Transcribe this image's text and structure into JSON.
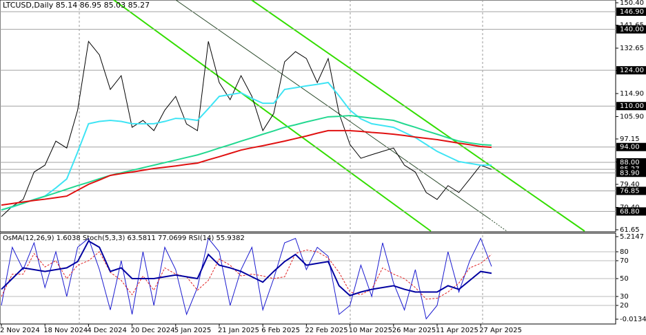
{
  "chart_data": [
    {
      "type": "line",
      "title": "LTCUSD,Daily  85.14 86.95 85.03 85.27",
      "categories": [
        "2 Nov 2024",
        null,
        null,
        null,
        "18 Nov 2024",
        null,
        null,
        null,
        "4 Dec 2024",
        null,
        null,
        null,
        "20 Dec 2024",
        null,
        null,
        null,
        "5 Jan 2025",
        null,
        null,
        null,
        "21 Jan 2025",
        null,
        null,
        null,
        "6 Feb 2025",
        null,
        null,
        null,
        "22 Feb 2025",
        null,
        null,
        null,
        "10 Mar 2025",
        null,
        null,
        null,
        "26 Mar 2025",
        null,
        null,
        null,
        "11 Apr 2025",
        null,
        null,
        null,
        "27 Apr 2025",
        null,
        null,
        null,
        null,
        null,
        null,
        null,
        null,
        null,
        null,
        null,
        null
      ],
      "ylim": [
        60.84,
        151.48
      ],
      "yticks": [
        {
          "value": 150.4,
          "label": "150.40"
        },
        {
          "value": 141.65,
          "label": "141.65"
        },
        {
          "value": 132.65,
          "label": "132.65"
        },
        {
          "value": 123.9,
          "label": "123.90"
        },
        {
          "value": 114.9,
          "label": "114.90"
        },
        {
          "value": 105.9,
          "label": "105.90"
        },
        {
          "value": 97.15,
          "label": "97.15"
        },
        {
          "value": 88.15,
          "label": "88.15"
        },
        {
          "value": 79.4,
          "label": "79.40"
        },
        {
          "value": 70.4,
          "label": "70.40"
        },
        {
          "value": 61.65,
          "label": "61.65"
        }
      ],
      "levels": [
        {
          "value": 146.9,
          "label": "146.90"
        },
        {
          "value": 140,
          "label": "140.00"
        },
        {
          "value": 124,
          "label": "124.00"
        },
        {
          "value": 110,
          "label": "110.00"
        },
        {
          "value": 94,
          "label": "94.00"
        },
        {
          "value": 88,
          "label": "88.00"
        },
        {
          "value": 85.27,
          "label": "85.27"
        },
        {
          "value": 83.9,
          "label": "83.90"
        },
        {
          "value": 76.85,
          "label": "76.85"
        },
        {
          "value": 68.8,
          "label": "68.80"
        }
      ],
      "series": [
        {
          "name": "Close",
          "color": "#000000",
          "values": [
            66.8,
            70.8,
            73.5,
            84.2,
            86.9,
            96.3,
            93.6,
            108.4,
            135.3,
            130,
            116.5,
            121.9,
            101.7,
            104.4,
            100.4,
            108.4,
            113.8,
            103,
            100.4,
            135.3,
            119.2,
            112.5,
            121.9,
            113.8,
            100.4,
            107.1,
            127.3,
            131.3,
            128.6,
            119.2,
            128.6,
            107.1,
            95,
            89.6,
            91,
            92.3,
            93.6,
            86.9,
            84.2,
            76.2,
            73.5,
            78.9,
            76.2,
            81.5,
            86.9,
            85.27,
            null,
            null,
            null,
            null,
            null,
            null,
            null,
            null,
            null,
            null,
            null
          ]
        },
        {
          "name": "MA fast",
          "color": "#3ee4f4",
          "values": [
            69.4,
            70.5,
            72,
            73.5,
            74.8,
            78,
            81.5,
            92,
            103.1,
            104,
            104.4,
            104,
            103.1,
            103.1,
            103.1,
            104,
            105.2,
            105,
            104.4,
            109,
            113.8,
            114.5,
            115.2,
            113,
            111.1,
            111.1,
            116.5,
            117.2,
            117.9,
            118.5,
            119.2,
            114,
            108.4,
            105,
            103.1,
            102.4,
            101.7,
            99.7,
            97.7,
            95,
            92.3,
            90.3,
            88.3,
            87.6,
            86.9,
            86.9,
            null,
            null,
            null,
            null,
            null,
            null,
            null,
            null,
            null,
            null,
            null
          ]
        },
        {
          "name": "MA mid",
          "color": "#22d890",
          "values": [
            69.4,
            70.7,
            72,
            73.4,
            74.7,
            76.1,
            77.5,
            78.9,
            80.2,
            81.6,
            82.9,
            83.9,
            84.9,
            85.9,
            86.9,
            87.9,
            88.9,
            89.9,
            90.9,
            92.2,
            93.6,
            94.9,
            96.3,
            97.6,
            99,
            100.3,
            101.7,
            102.7,
            103.8,
            104.8,
            105.8,
            106,
            106.3,
            105.8,
            105.3,
            104.9,
            104.4,
            103,
            101.7,
            100.3,
            99,
            97.6,
            96.3,
            95.6,
            95,
            94.7,
            null,
            null,
            null,
            null,
            null,
            null,
            null,
            null,
            null,
            null,
            null
          ]
        },
        {
          "name": "MA slow",
          "color": "#e01010",
          "values": [
            71.3,
            71.9,
            72.5,
            73.1,
            73.6,
            74.2,
            74.8,
            77.1,
            79.4,
            81.1,
            82.9,
            83.6,
            84.2,
            84.9,
            85.6,
            86.1,
            86.6,
            87.2,
            87.7,
            89,
            90.2,
            91.5,
            92.8,
            93.7,
            94.5,
            95.4,
            96.3,
            97.3,
            98.3,
            99.4,
            100.4,
            100.4,
            100.4,
            100.1,
            99.7,
            99.4,
            99,
            98.5,
            97.9,
            97.4,
            96.9,
            96.2,
            95.5,
            94.9,
            94.2,
            93.9,
            null,
            null,
            null,
            null,
            null,
            null,
            null,
            null,
            null,
            null,
            null
          ]
        }
      ]
    },
    {
      "type": "line",
      "title": "OsMA(12,26,9) 1.6038  Stoch(5,3,3) 63.5811 77.0699  RSI(14) 55.9382",
      "ylim": [
        0,
        100
      ],
      "yticks": [
        20,
        30,
        50,
        70,
        80
      ],
      "y2lim": [
        -0.275,
        5.389
      ],
      "y2ticks": [
        5.2147,
        -0.0134
      ],
      "series": [
        {
          "name": "Stoch",
          "color": "#1a1ad0",
          "values": [
            20,
            85,
            60,
            90,
            40,
            80,
            30,
            85,
            95,
            60,
            15,
            70,
            10,
            80,
            20,
            85,
            60,
            10,
            40,
            95,
            80,
            20,
            60,
            85,
            15,
            50,
            90,
            95,
            60,
            85,
            75,
            10,
            20,
            65,
            30,
            90,
            45,
            15,
            60,
            5,
            20,
            80,
            35,
            70,
            95,
            63.5811,
            null,
            null,
            null,
            null,
            null,
            null,
            null,
            null,
            null,
            null,
            null
          ]
        },
        {
          "name": "Signal",
          "color": "#e02020",
          "values": [
            30,
            55,
            55,
            78,
            63,
            70,
            50,
            65,
            70,
            80,
            57,
            48,
            32,
            53,
            37,
            62,
            55,
            52,
            37,
            48,
            72,
            65,
            53,
            55,
            53,
            50,
            52,
            78,
            82,
            80,
            73,
            57,
            35,
            32,
            38,
            62,
            55,
            50,
            40,
            27,
            28,
            35,
            45,
            62,
            67,
            77.0699,
            null,
            null,
            null,
            null,
            null,
            null,
            null,
            null,
            null,
            null,
            null
          ]
        },
        {
          "name": "RSI",
          "color": "#0000a0",
          "values": [
            38,
            50,
            62,
            60,
            58,
            60,
            62,
            69,
            92,
            85,
            58,
            62,
            50,
            50,
            50,
            52,
            54,
            52,
            50,
            77,
            65,
            62,
            58,
            52,
            46,
            58,
            69,
            77,
            65,
            67,
            69,
            42,
            31,
            35,
            38,
            40,
            42,
            38,
            35,
            35,
            35,
            42,
            38,
            48,
            58,
            55.9382,
            null,
            null,
            null,
            null,
            null,
            null,
            null,
            null,
            null,
            null,
            null
          ]
        }
      ]
    }
  ]
}
